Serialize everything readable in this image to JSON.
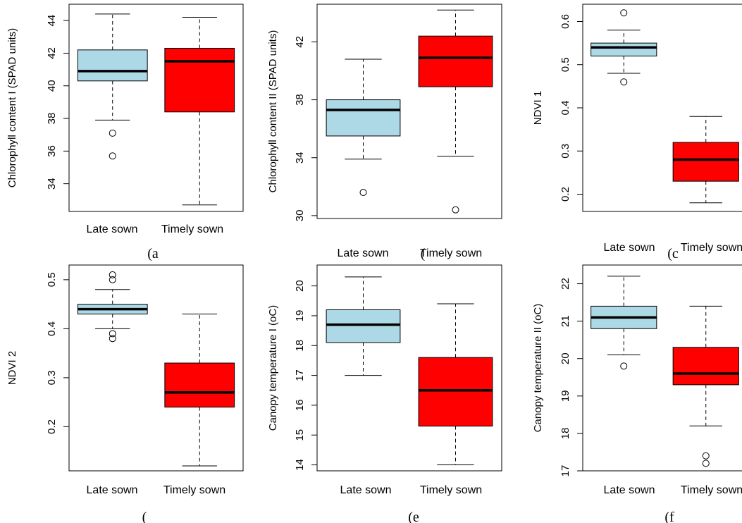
{
  "colors": {
    "late": "#add8e6",
    "timely": "#ff0000",
    "stroke": "#000000"
  },
  "chart_data": [
    {
      "type": "box",
      "panel_label": "(a",
      "ylabel": "Chlorophyll content I (SPAD units)",
      "categories": [
        "Late sown",
        "Timely sown"
      ],
      "ylim": [
        32.3,
        45.0
      ],
      "yticks": [
        34,
        36,
        38,
        40,
        42,
        44
      ],
      "boxes": [
        {
          "name": "Late sown",
          "lower_whisker": 37.9,
          "q1": 40.3,
          "median": 40.9,
          "q3": 42.2,
          "upper_whisker": 44.4,
          "outliers": [
            37.1,
            35.7
          ],
          "color": "#add8e6"
        },
        {
          "name": "Timely sown",
          "lower_whisker": 32.7,
          "q1": 38.4,
          "median": 41.5,
          "q3": 42.3,
          "upper_whisker": 44.2,
          "outliers": [],
          "color": "#ff0000"
        }
      ]
    },
    {
      "type": "box",
      "panel_label": "(",
      "ylabel": "Chlorophyll content II (SPAD units)",
      "categories": [
        "Late sown",
        "Timely sown"
      ],
      "ylim": [
        29.8,
        44.6
      ],
      "yticks": [
        30,
        34,
        38,
        42
      ],
      "boxes": [
        {
          "name": "Late sown",
          "lower_whisker": 33.9,
          "q1": 35.5,
          "median": 37.3,
          "q3": 38.0,
          "upper_whisker": 40.8,
          "outliers": [
            31.6
          ],
          "color": "#add8e6"
        },
        {
          "name": "Timely sown",
          "lower_whisker": 34.1,
          "q1": 38.9,
          "median": 40.9,
          "q3": 42.4,
          "upper_whisker": 44.2,
          "outliers": [
            30.4
          ],
          "color": "#ff0000"
        }
      ]
    },
    {
      "type": "box",
      "panel_label": "(c",
      "ylabel": "NDVI 1",
      "categories": [
        "Late sown",
        "Timely sown"
      ],
      "ylim": [
        0.16,
        0.64
      ],
      "yticks": [
        0.2,
        0.3,
        0.4,
        0.5,
        0.6
      ],
      "boxes": [
        {
          "name": "Late sown",
          "lower_whisker": 0.48,
          "q1": 0.52,
          "median": 0.54,
          "q3": 0.55,
          "upper_whisker": 0.58,
          "outliers": [
            0.62,
            0.46
          ],
          "color": "#add8e6"
        },
        {
          "name": "Timely sown",
          "lower_whisker": 0.18,
          "q1": 0.23,
          "median": 0.28,
          "q3": 0.32,
          "upper_whisker": 0.38,
          "outliers": [],
          "color": "#ff0000"
        }
      ]
    },
    {
      "type": "box",
      "panel_label": "(",
      "ylabel": "NDVI 2",
      "categories": [
        "Late sown",
        "Timely sown"
      ],
      "ylim": [
        0.11,
        0.53
      ],
      "yticks": [
        0.2,
        0.3,
        0.4,
        0.5
      ],
      "boxes": [
        {
          "name": "Late sown",
          "lower_whisker": 0.4,
          "q1": 0.43,
          "median": 0.44,
          "q3": 0.45,
          "upper_whisker": 0.48,
          "outliers": [
            0.51,
            0.5,
            0.39,
            0.38
          ],
          "color": "#add8e6"
        },
        {
          "name": "Timely sown",
          "lower_whisker": 0.12,
          "q1": 0.24,
          "median": 0.27,
          "q3": 0.33,
          "upper_whisker": 0.43,
          "outliers": [],
          "color": "#ff0000"
        }
      ]
    },
    {
      "type": "box",
      "panel_label": "(e",
      "ylabel": "Canopy temperature I (oC)",
      "categories": [
        "Late sown",
        "Timely sown"
      ],
      "ylim": [
        13.8,
        20.7
      ],
      "yticks": [
        14,
        15,
        16,
        17,
        18,
        19,
        20
      ],
      "boxes": [
        {
          "name": "Late sown",
          "lower_whisker": 17.0,
          "q1": 18.1,
          "median": 18.7,
          "q3": 19.2,
          "upper_whisker": 20.3,
          "outliers": [],
          "color": "#add8e6"
        },
        {
          "name": "Timely sown",
          "lower_whisker": 14.0,
          "q1": 15.3,
          "median": 16.5,
          "q3": 17.6,
          "upper_whisker": 19.4,
          "outliers": [],
          "color": "#ff0000"
        }
      ]
    },
    {
      "type": "box",
      "panel_label": "(f",
      "ylabel": "Canopy temperature II (oC)",
      "categories": [
        "Late sown",
        "Timely sown"
      ],
      "ylim": [
        17.0,
        22.5
      ],
      "yticks": [
        17,
        18,
        19,
        20,
        21,
        22
      ],
      "boxes": [
        {
          "name": "Late sown",
          "lower_whisker": 20.1,
          "q1": 20.8,
          "median": 21.1,
          "q3": 21.4,
          "upper_whisker": 22.2,
          "outliers": [
            19.8
          ],
          "color": "#add8e6"
        },
        {
          "name": "Timely sown",
          "lower_whisker": 18.2,
          "q1": 19.3,
          "median": 19.6,
          "q3": 20.3,
          "upper_whisker": 21.4,
          "outliers": [
            17.4,
            17.2
          ],
          "color": "#ff0000"
        }
      ]
    }
  ]
}
